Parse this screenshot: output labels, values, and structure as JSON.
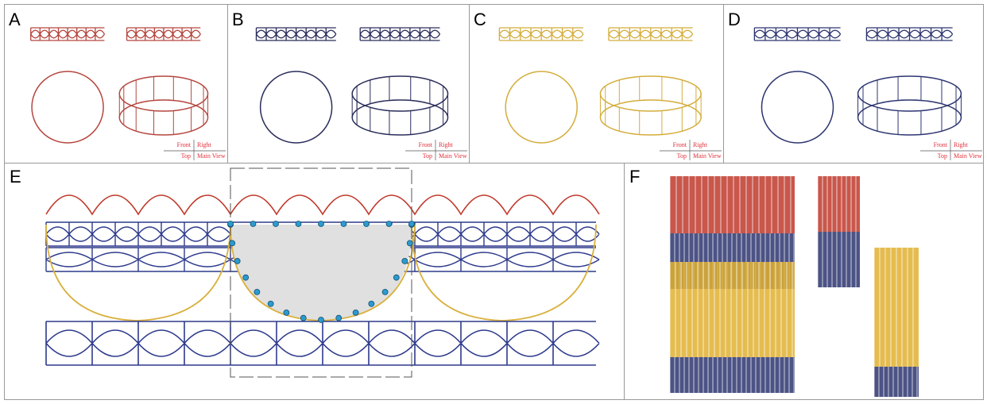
{
  "panels": [
    {
      "label": "A",
      "view_labels": [
        "Front",
        "Right",
        "Top",
        "Main View"
      ]
    },
    {
      "label": "B",
      "view_labels": [
        "Front",
        "Right",
        "Top",
        "Main View"
      ]
    },
    {
      "label": "C",
      "view_labels": [
        "Front",
        "Right",
        "Top",
        "Main View"
      ]
    },
    {
      "label": "D",
      "view_labels": [
        "Front",
        "Right",
        "Top",
        "Main View"
      ]
    },
    {
      "label": "E"
    },
    {
      "label": "F"
    }
  ]
}
